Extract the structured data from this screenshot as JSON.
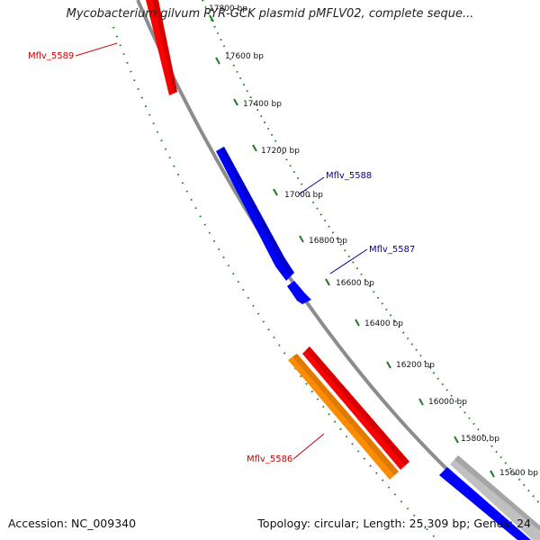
{
  "title": "Mycobacterium gilvum PYR-GCK plasmid pMFLV02, complete seque...",
  "accession": "Accession: NC_009340",
  "topology": "Topology: circular; Length: 25,309 bp; Genes: 24",
  "colors": {
    "backbone": "#8c8c8c",
    "tick_dots": "#1f7a1f",
    "forward_gene": "#ff0000",
    "reverse_gene": "#0000ff",
    "orange_gene": "#ff8c00",
    "grey_gene": "#c0c0c0",
    "label_red": "#cc0000",
    "label_blue": "#0000aa"
  },
  "tick_labels": [
    "17800 bp",
    "17600 bp",
    "17400 bp",
    "17200 bp",
    "17000 bp",
    "16800 bp",
    "16600 bp",
    "16400 bp",
    "16200 bp",
    "16000 bp",
    "15800 bp",
    "15600 bp"
  ],
  "gene_labels": [
    {
      "id": "Mflv_5589",
      "text": "Mflv_5589"
    },
    {
      "id": "Mflv_5588",
      "text": "Mflv_5588"
    },
    {
      "id": "Mflv_5587",
      "text": "Mflv_5587"
    },
    {
      "id": "Mflv_5586",
      "text": "Mflv_5586"
    }
  ]
}
